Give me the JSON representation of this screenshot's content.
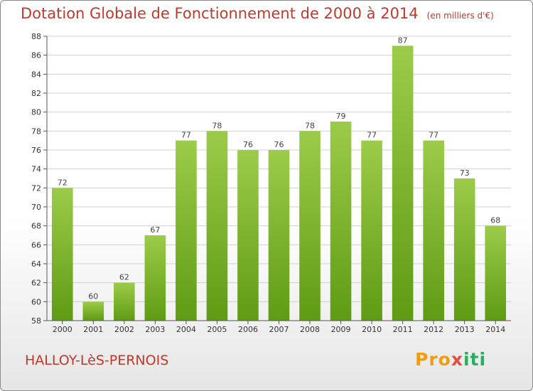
{
  "title": "Dotation Globale de Fonctionnement de 2000 à 2014",
  "units": "(en milliers d'€)",
  "commune": "HALLOY-LèS-PERNOIS",
  "logo": {
    "part1": "Pro",
    "part2": "x",
    "part3": "iti"
  },
  "colors": {
    "bar_top": "#9ccb4a",
    "bar_bottom": "#5f9b14",
    "title": "#c0392b",
    "grid": "#d0d0d0"
  },
  "chart_data": {
    "type": "bar",
    "title": "Dotation Globale de Fonctionnement de 2000 à 2014",
    "xlabel": "",
    "ylabel": "",
    "ylim": [
      58,
      88
    ],
    "yticks": [
      58,
      60,
      62,
      64,
      66,
      68,
      70,
      72,
      74,
      76,
      78,
      80,
      82,
      84,
      86,
      88
    ],
    "categories": [
      "2000",
      "2001",
      "2002",
      "2003",
      "2004",
      "2005",
      "2006",
      "2007",
      "2008",
      "2009",
      "2010",
      "2011",
      "2012",
      "2013",
      "2014"
    ],
    "values": [
      72,
      60,
      62,
      67,
      77,
      78,
      76,
      76,
      78,
      79,
      77,
      87,
      77,
      73,
      68
    ],
    "grid": true,
    "data_labels": true
  }
}
